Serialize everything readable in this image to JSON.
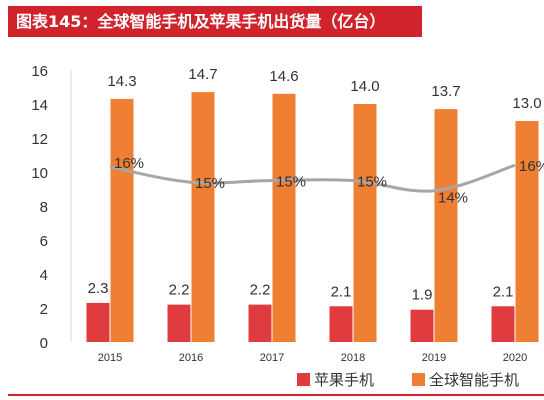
{
  "title": "图表145：全球智能手机及苹果手机出货量（亿台）",
  "colors": {
    "apple": "#e03c3f",
    "global": "#ef7f33",
    "share_line": "#a6a6a6",
    "title_bg": "#d0232c"
  },
  "chart_data": {
    "type": "bar",
    "title": "图表145：全球智能手机及苹果手机出货量（亿台）",
    "categories": [
      "2015",
      "2016",
      "2017",
      "2018",
      "2019",
      "2020"
    ],
    "series": [
      {
        "name": "苹果手机",
        "values": [
          2.3,
          2.2,
          2.2,
          2.1,
          1.9,
          2.1
        ]
      },
      {
        "name": "全球智能手机",
        "values": [
          14.3,
          14.7,
          14.6,
          14.0,
          13.7,
          13.0
        ]
      }
    ],
    "value_labels": [
      [
        "2.3",
        "2.2",
        "2.2",
        "2.1",
        "1.9",
        "2.1"
      ],
      [
        "14.3",
        "14.7",
        "14.6",
        "14.0",
        "13.7",
        "13.0"
      ]
    ],
    "line_series": {
      "type": "line",
      "values": [
        0.16,
        0.15,
        0.15,
        0.15,
        0.14,
        0.16
      ],
      "labels": [
        "16%",
        "15%",
        "15%",
        "15%",
        "14%",
        "16%"
      ],
      "line_y_values": [
        10.3,
        9.4,
        9.5,
        9.5,
        8.9,
        10.4
      ]
    },
    "yticks": [
      "0",
      "2",
      "4",
      "6",
      "8",
      "10",
      "12",
      "14",
      "16"
    ],
    "ylim": [
      0,
      16
    ],
    "grid": false,
    "legend_position": "bottom-right",
    "xlabel": "",
    "ylabel": ""
  }
}
